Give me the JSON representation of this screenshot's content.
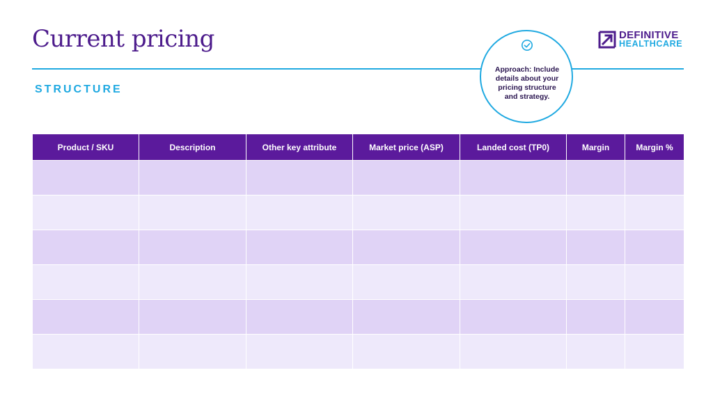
{
  "page": {
    "title": "Current pricing",
    "subtitle": "STRUCTURE"
  },
  "logo": {
    "line1": "DEFINITIVE",
    "line2": "HEALTHCARE"
  },
  "callout": {
    "icon": "check-circle-icon",
    "text": "Approach: Include details about your pricing structure and strategy."
  },
  "table": {
    "columns": [
      "Product / SKU",
      "Description",
      "Other key attribute",
      "Market price (ASP)",
      "Landed cost (TP0)",
      "Margin",
      "Margin %"
    ],
    "rows": [
      [
        "",
        "",
        "",
        "",
        "",
        "",
        ""
      ],
      [
        "",
        "",
        "",
        "",
        "",
        "",
        ""
      ],
      [
        "",
        "",
        "",
        "",
        "",
        "",
        ""
      ],
      [
        "",
        "",
        "",
        "",
        "",
        "",
        ""
      ],
      [
        "",
        "",
        "",
        "",
        "",
        "",
        ""
      ],
      [
        "",
        "",
        "",
        "",
        "",
        "",
        ""
      ]
    ]
  },
  "colors": {
    "brand_purple": "#4d1c8c",
    "header_purple": "#5b1a9c",
    "accent_blue": "#1fa9e1",
    "row_odd": "#e0d3f6",
    "row_even": "#eee9fb"
  }
}
